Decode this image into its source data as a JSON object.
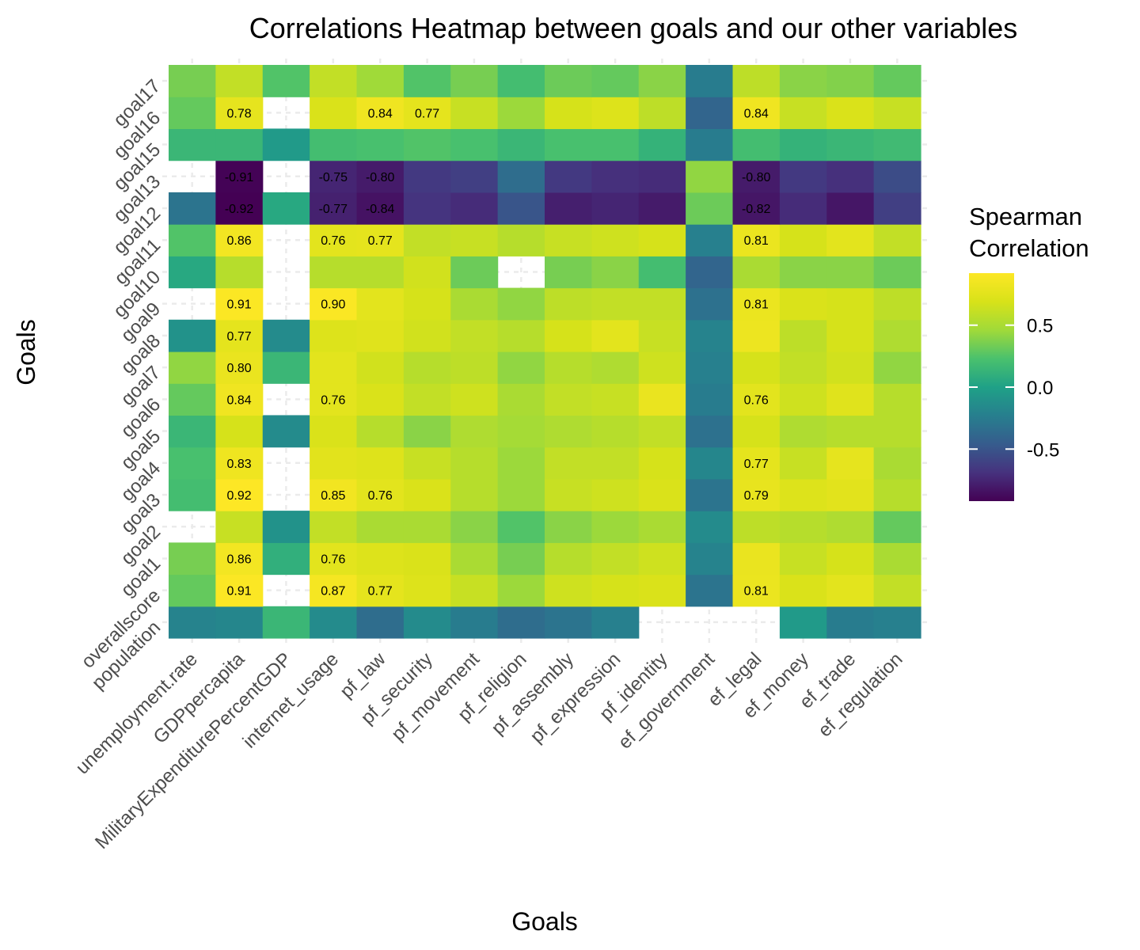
{
  "chart_data": {
    "type": "heatmap",
    "title": "Correlations Heatmap between goals and our other variables",
    "xlabel": "Goals",
    "ylabel": "Goals",
    "x_categories": [
      "unemployment.rate",
      "GDPpercapita",
      "MilitaryExpenditurePercentGDP",
      "internet_usage",
      "pf_law",
      "pf_security",
      "pf_movement",
      "pf_religion",
      "pf_assembly",
      "pf_expression",
      "pf_identity",
      "ef_government",
      "ef_legal",
      "ef_money",
      "ef_trade",
      "ef_regulation"
    ],
    "y_categories": [
      "population",
      "overallscore",
      "goal1",
      "goal2",
      "goal3",
      "goal4",
      "goal5",
      "goal6",
      "goal7",
      "goal8",
      "goal9",
      "goal10",
      "goal11",
      "goal12",
      "goal13",
      "goal15",
      "goal16",
      "goal17"
    ],
    "values": [
      [
        -0.2,
        -0.18,
        0.15,
        -0.15,
        -0.35,
        -0.15,
        -0.25,
        -0.35,
        -0.3,
        -0.22,
        null,
        null,
        null,
        -0.05,
        -0.25,
        -0.22
      ],
      [
        0.3,
        0.91,
        null,
        0.87,
        0.77,
        0.72,
        0.62,
        0.45,
        0.65,
        0.68,
        0.7,
        -0.3,
        0.81,
        0.7,
        0.76,
        0.6
      ],
      [
        0.35,
        0.86,
        0.1,
        0.76,
        0.72,
        0.7,
        0.5,
        0.35,
        0.55,
        0.6,
        0.65,
        -0.2,
        0.8,
        0.62,
        0.68,
        0.5
      ],
      [
        null,
        0.62,
        -0.1,
        0.6,
        0.5,
        0.5,
        0.4,
        0.25,
        0.4,
        0.45,
        0.5,
        -0.15,
        0.58,
        0.55,
        0.52,
        0.3
      ],
      [
        0.2,
        0.92,
        null,
        0.85,
        0.76,
        0.7,
        0.55,
        0.45,
        0.62,
        0.65,
        0.7,
        -0.3,
        0.79,
        0.72,
        0.75,
        0.55
      ],
      [
        0.22,
        0.83,
        null,
        0.75,
        0.73,
        0.62,
        0.55,
        0.45,
        0.6,
        0.6,
        0.68,
        -0.18,
        0.77,
        0.62,
        0.78,
        0.5
      ],
      [
        0.15,
        0.68,
        -0.15,
        0.7,
        0.55,
        0.4,
        0.52,
        0.48,
        0.52,
        0.55,
        0.6,
        -0.32,
        0.68,
        0.52,
        0.55,
        0.55
      ],
      [
        0.3,
        0.84,
        null,
        0.76,
        0.7,
        0.6,
        0.65,
        0.5,
        0.6,
        0.62,
        0.8,
        -0.25,
        0.76,
        0.65,
        0.74,
        0.55
      ],
      [
        0.42,
        0.8,
        0.15,
        0.76,
        0.66,
        0.55,
        0.58,
        0.42,
        0.55,
        0.52,
        0.65,
        -0.22,
        0.68,
        0.6,
        0.66,
        0.42
      ],
      [
        -0.1,
        0.77,
        -0.15,
        0.72,
        0.74,
        0.66,
        0.6,
        0.55,
        0.68,
        0.76,
        0.62,
        -0.2,
        0.82,
        0.58,
        0.68,
        0.52
      ],
      [
        null,
        0.91,
        null,
        0.9,
        0.76,
        0.68,
        0.5,
        0.42,
        0.58,
        0.6,
        0.6,
        -0.32,
        0.81,
        0.7,
        0.68,
        0.58
      ],
      [
        0.05,
        0.55,
        null,
        0.55,
        0.55,
        0.66,
        0.32,
        null,
        0.35,
        0.4,
        0.2,
        -0.4,
        0.5,
        0.4,
        0.4,
        0.32
      ],
      [
        0.25,
        0.86,
        null,
        0.76,
        0.77,
        0.6,
        0.62,
        0.55,
        0.62,
        0.65,
        0.68,
        -0.22,
        0.81,
        0.68,
        0.76,
        0.6
      ],
      [
        -0.3,
        -0.92,
        0.05,
        -0.77,
        -0.84,
        -0.68,
        -0.72,
        -0.5,
        -0.78,
        -0.75,
        -0.8,
        0.32,
        -0.82,
        -0.72,
        -0.82,
        -0.62
      ],
      [
        null,
        -0.91,
        null,
        -0.75,
        -0.8,
        -0.65,
        -0.62,
        -0.35,
        -0.65,
        -0.7,
        -0.72,
        0.42,
        -0.8,
        -0.65,
        -0.7,
        -0.55
      ],
      [
        0.15,
        0.15,
        -0.05,
        0.2,
        0.22,
        0.25,
        0.22,
        0.15,
        0.22,
        0.22,
        0.12,
        -0.25,
        0.2,
        0.12,
        0.15,
        0.18
      ],
      [
        0.3,
        0.78,
        null,
        0.7,
        0.84,
        0.77,
        0.62,
        0.45,
        0.68,
        0.72,
        0.58,
        -0.4,
        0.84,
        0.62,
        0.7,
        0.62
      ],
      [
        0.35,
        0.6,
        0.25,
        0.6,
        0.46,
        0.25,
        0.35,
        0.2,
        0.32,
        0.3,
        0.4,
        -0.25,
        0.58,
        0.4,
        0.38,
        0.3
      ]
    ],
    "labels": [
      [
        null,
        null,
        null,
        null,
        null,
        null,
        null,
        null,
        null,
        null,
        null,
        null,
        null,
        null,
        null,
        null
      ],
      [
        null,
        "0.91",
        null,
        "0.87",
        "0.77",
        null,
        null,
        null,
        null,
        null,
        null,
        null,
        "0.81",
        null,
        null,
        null
      ],
      [
        null,
        "0.86",
        null,
        "0.76",
        null,
        null,
        null,
        null,
        null,
        null,
        null,
        null,
        null,
        null,
        null,
        null
      ],
      [
        null,
        null,
        null,
        null,
        null,
        null,
        null,
        null,
        null,
        null,
        null,
        null,
        null,
        null,
        null,
        null
      ],
      [
        null,
        "0.92",
        null,
        "0.85",
        "0.76",
        null,
        null,
        null,
        null,
        null,
        null,
        null,
        "0.79",
        null,
        null,
        null
      ],
      [
        null,
        "0.83",
        null,
        null,
        null,
        null,
        null,
        null,
        null,
        null,
        null,
        null,
        "0.77",
        null,
        null,
        null
      ],
      [
        null,
        null,
        null,
        null,
        null,
        null,
        null,
        null,
        null,
        null,
        null,
        null,
        null,
        null,
        null,
        null
      ],
      [
        null,
        "0.84",
        null,
        "0.76",
        null,
        null,
        null,
        null,
        null,
        null,
        null,
        null,
        "0.76",
        null,
        null,
        null
      ],
      [
        null,
        "0.80",
        null,
        null,
        null,
        null,
        null,
        null,
        null,
        null,
        null,
        null,
        null,
        null,
        null,
        null
      ],
      [
        null,
        "0.77",
        null,
        null,
        null,
        null,
        null,
        null,
        null,
        null,
        null,
        null,
        null,
        null,
        null,
        null
      ],
      [
        null,
        "0.91",
        null,
        "0.90",
        null,
        null,
        null,
        null,
        null,
        null,
        null,
        null,
        "0.81",
        null,
        null,
        null
      ],
      [
        null,
        null,
        null,
        null,
        null,
        null,
        null,
        null,
        null,
        null,
        null,
        null,
        null,
        null,
        null,
        null
      ],
      [
        null,
        "0.86",
        null,
        "0.76",
        "0.77",
        null,
        null,
        null,
        null,
        null,
        null,
        null,
        "0.81",
        null,
        null,
        null
      ],
      [
        null,
        "-0.92",
        null,
        "-0.77",
        "-0.84",
        null,
        null,
        null,
        null,
        null,
        null,
        null,
        "-0.82",
        null,
        null,
        null
      ],
      [
        null,
        "-0.91",
        null,
        "-0.75",
        "-0.80",
        null,
        null,
        null,
        null,
        null,
        null,
        null,
        "-0.80",
        null,
        null,
        null
      ],
      [
        null,
        null,
        null,
        null,
        null,
        null,
        null,
        null,
        null,
        null,
        null,
        null,
        null,
        null,
        null,
        null
      ],
      [
        null,
        "0.78",
        null,
        null,
        "0.84",
        "0.77",
        null,
        null,
        null,
        null,
        null,
        null,
        "0.84",
        null,
        null,
        null
      ],
      [
        null,
        null,
        null,
        null,
        null,
        null,
        null,
        null,
        null,
        null,
        null,
        null,
        null,
        null,
        null,
        null
      ]
    ],
    "color_scale": "viridis",
    "color_range": [
      -0.92,
      0.92
    ],
    "legend": {
      "title_lines": [
        "Spearman",
        "Correlation"
      ],
      "ticks": [
        0.5,
        0.0,
        -0.5
      ],
      "tick_labels": [
        "0.5",
        "0.0",
        "-0.5"
      ],
      "position": "right"
    },
    "grid": true
  }
}
